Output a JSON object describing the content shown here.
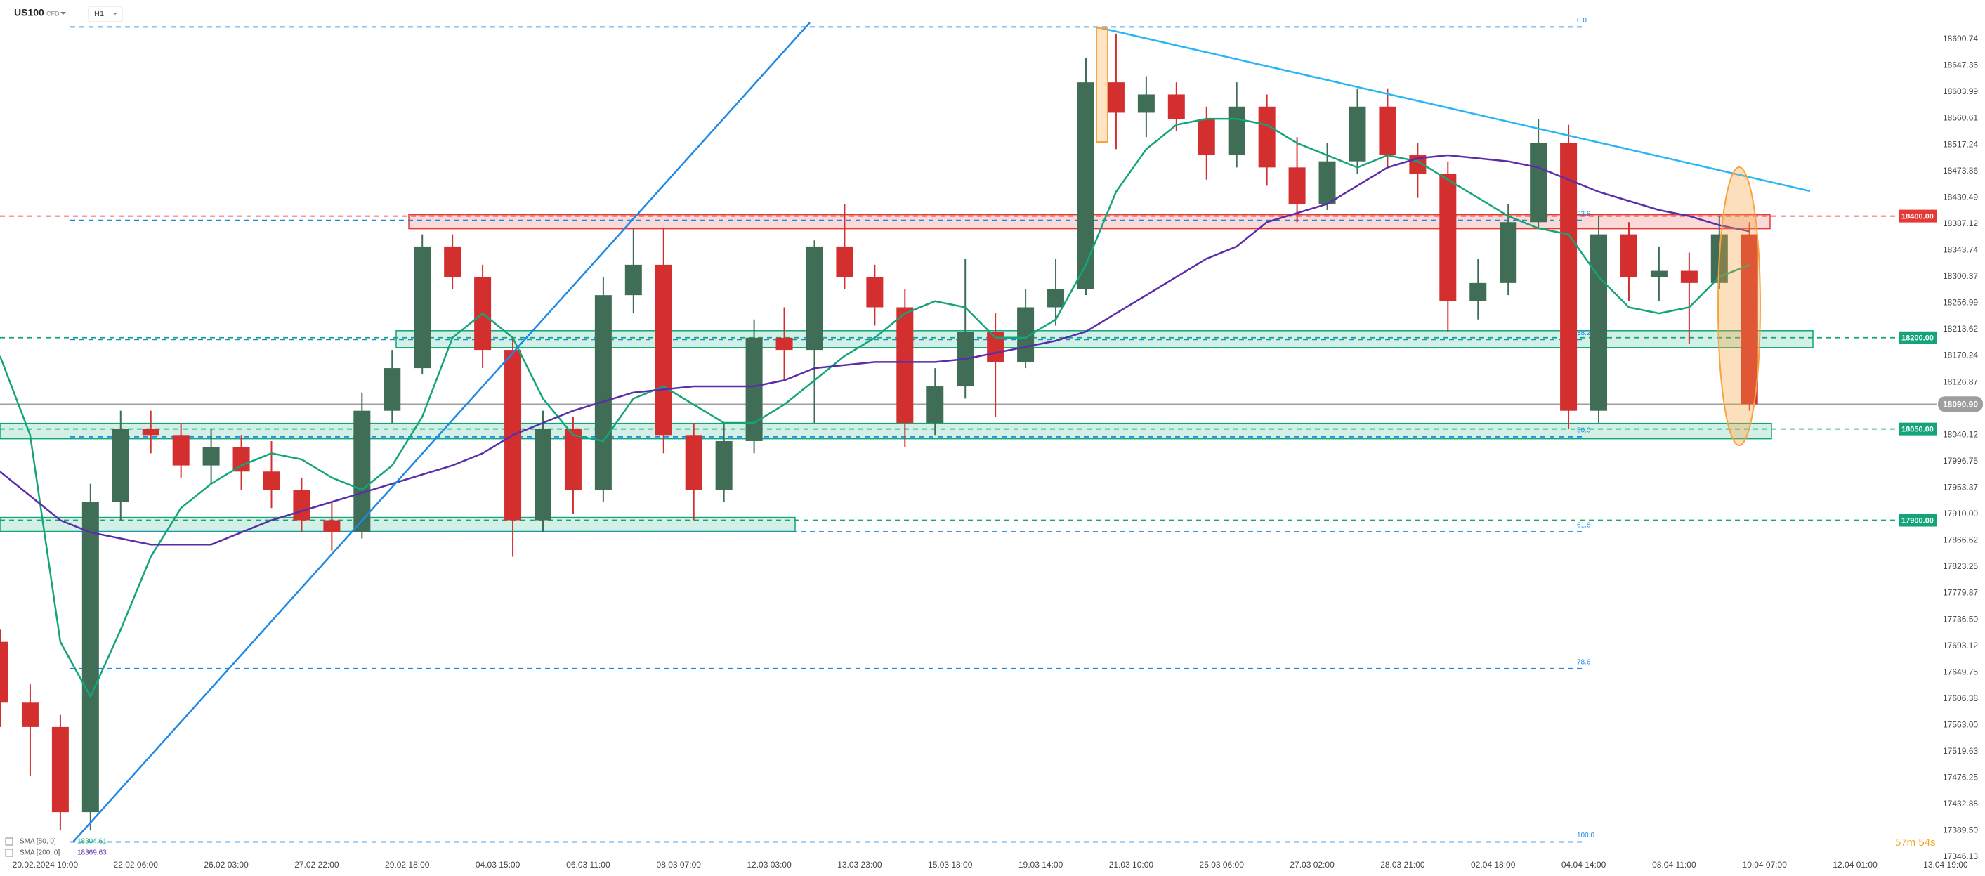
{
  "chart_data": {
    "type": "candlestick",
    "symbol": "US100",
    "instrument": "CFD",
    "interval": "H1",
    "timer": "57m 54s",
    "up_color": "#3f6d55",
    "down_color": "#d32f2f",
    "candles": {
      "open": [
        17700,
        17600,
        17560,
        17420,
        17930,
        18050,
        18040,
        17990,
        18020,
        17980,
        17950,
        17900,
        17880,
        18080,
        18150,
        18350,
        18300,
        18180,
        17900,
        18050,
        17950,
        18270,
        18320,
        18040,
        17950,
        18030,
        18200,
        18180,
        18350,
        18300,
        18250,
        18060,
        18120,
        18210,
        18160,
        18250,
        18280,
        18620,
        18570,
        18600,
        18560,
        18500,
        18580,
        18480,
        18420,
        18490,
        18580,
        18500,
        18470,
        18260,
        18290,
        18390,
        18520,
        18080,
        18370,
        18300,
        18310,
        18290,
        18370
      ],
      "high": [
        17720,
        17630,
        17580,
        17960,
        18080,
        18080,
        18060,
        18050,
        18040,
        18030,
        17970,
        17930,
        18110,
        18180,
        18370,
        18370,
        18320,
        18200,
        18080,
        18070,
        18300,
        18380,
        18380,
        18060,
        18060,
        18230,
        18250,
        18360,
        18420,
        18320,
        18280,
        18150,
        18330,
        18240,
        18280,
        18330,
        18660,
        18700,
        18630,
        18620,
        18580,
        18620,
        18600,
        18530,
        18520,
        18610,
        18610,
        18520,
        18490,
        18330,
        18420,
        18560,
        18550,
        18400,
        18390,
        18350,
        18340,
        18400,
        18390
      ],
      "low": [
        17560,
        17480,
        17390,
        17390,
        17900,
        18010,
        17970,
        17960,
        17950,
        17920,
        17880,
        17850,
        17870,
        18060,
        18140,
        18280,
        18150,
        17840,
        17880,
        17910,
        17930,
        18240,
        18010,
        17900,
        17930,
        18010,
        18130,
        18060,
        18280,
        18220,
        18020,
        18040,
        18100,
        18070,
        18150,
        18220,
        18270,
        18510,
        18530,
        18540,
        18460,
        18480,
        18450,
        18390,
        18410,
        18470,
        18480,
        18430,
        18210,
        18230,
        18270,
        18380,
        18050,
        18060,
        18260,
        18260,
        18190,
        18280,
        18080
      ],
      "close": [
        17600,
        17560,
        17420,
        17930,
        18050,
        18040,
        17990,
        18020,
        17980,
        17950,
        17900,
        17880,
        18080,
        18150,
        18350,
        18300,
        18180,
        17900,
        18050,
        17950,
        18270,
        18320,
        18040,
        17950,
        18030,
        18200,
        18180,
        18350,
        18300,
        18250,
        18060,
        18120,
        18210,
        18160,
        18250,
        18280,
        18620,
        18570,
        18600,
        18560,
        18500,
        18580,
        18480,
        18420,
        18490,
        18580,
        18500,
        18470,
        18260,
        18290,
        18390,
        18520,
        18080,
        18370,
        18300,
        18310,
        18290,
        18370,
        18090.9
      ]
    },
    "overlays": [
      {
        "name": "SMA [50, 0]",
        "last": 18304.61,
        "color": "#13a47a",
        "values": [
          18170,
          18040,
          17700,
          17610,
          17720,
          17840,
          17920,
          17960,
          17990,
          18010,
          18000,
          17970,
          17950,
          17990,
          18070,
          18200,
          18240,
          18200,
          18100,
          18040,
          18030,
          18100,
          18120,
          18090,
          18060,
          18060,
          18090,
          18130,
          18170,
          18200,
          18240,
          18260,
          18250,
          18200,
          18200,
          18230,
          18320,
          18440,
          18510,
          18550,
          18560,
          18560,
          18550,
          18520,
          18500,
          18480,
          18500,
          18490,
          18460,
          18430,
          18400,
          18380,
          18370,
          18300,
          18250,
          18240,
          18250,
          18300,
          18320
        ]
      },
      {
        "name": "SMA [200, 0]",
        "last": 18369.63,
        "color": "#5b2da8",
        "values": [
          17980,
          17940,
          17900,
          17880,
          17870,
          17860,
          17860,
          17860,
          17880,
          17900,
          17915,
          17930,
          17945,
          17960,
          17975,
          17990,
          18010,
          18040,
          18060,
          18080,
          18095,
          18110,
          18115,
          18120,
          18120,
          18120,
          18130,
          18150,
          18155,
          18160,
          18160,
          18160,
          18165,
          18175,
          18185,
          18195,
          18210,
          18240,
          18270,
          18300,
          18330,
          18350,
          18390,
          18405,
          18420,
          18450,
          18480,
          18495,
          18500,
          18495,
          18490,
          18480,
          18460,
          18440,
          18425,
          18410,
          18400,
          18385,
          18375
        ]
      }
    ],
    "levels": [
      {
        "value": 18400,
        "label": "18400.00",
        "color": "#e53935"
      },
      {
        "value": 18200,
        "label": "18200.00",
        "color": "#13a47a"
      },
      {
        "value": 18050,
        "label": "18050.00",
        "color": "#13a47a"
      },
      {
        "value": 17900,
        "label": "17900.00",
        "color": "#13a47a"
      }
    ],
    "fib_levels": [
      {
        "label": "0.0",
        "price": 18711
      },
      {
        "label": "23.6",
        "price": 18393
      },
      {
        "label": "38.2",
        "price": 18197
      },
      {
        "label": "50.0",
        "price": 18037
      },
      {
        "label": "61.8",
        "price": 17881
      },
      {
        "label": "78.6",
        "price": 17656
      },
      {
        "label": "100.0",
        "price": 17371
      }
    ],
    "fib_color": "#1e88e5",
    "last_price": {
      "value": 18090.9,
      "label": "18090.90"
    },
    "ylim": [
      17333.5,
      18755.3
    ],
    "yticks": [
      18690.74,
      18647.36,
      18603.99,
      18560.61,
      18517.24,
      18473.86,
      18430.49,
      18387.12,
      18343.74,
      18300.37,
      18256.99,
      18213.62,
      18170.24,
      18126.87,
      18040.12,
      17996.75,
      17953.37,
      {
        "value": 17910,
        "label": "17910.00"
      },
      17866.62,
      17823.25,
      17779.87,
      {
        "value": 17736.5,
        "label": "17736.50"
      },
      17693.12,
      17649.75,
      17606.38,
      {
        "value": 17563,
        "label": "17563.00"
      },
      17519.63,
      17476.25,
      17432.88,
      {
        "value": 17389.5,
        "label": "17389.50"
      },
      17346.13
    ],
    "xlim": [
      0,
      64.2
    ],
    "xticks": [
      {
        "value": 1.5,
        "label": "20.02.2024 10:00"
      },
      {
        "value": 4.5,
        "label": "22.02 06:00"
      },
      {
        "value": 7.5,
        "label": "26.02 03:00"
      },
      {
        "value": 10.5,
        "label": "27.02 22:00"
      },
      {
        "value": 13.5,
        "label": "29.02 18:00"
      },
      {
        "value": 16.5,
        "label": "04.03 15:00"
      },
      {
        "value": 19.5,
        "label": "06.03 11:00"
      },
      {
        "value": 22.5,
        "label": "08.03 07:00"
      },
      {
        "value": 25.5,
        "label": "12.03 03:00"
      },
      {
        "value": 28.5,
        "label": "13.03 23:00"
      },
      {
        "value": 31.5,
        "label": "15.03 18:00"
      },
      {
        "value": 34.5,
        "label": "19.03 14:00"
      },
      {
        "value": 37.5,
        "label": "21.03 10:00"
      },
      {
        "value": 40.5,
        "label": "25.03 06:00"
      },
      {
        "value": 43.5,
        "label": "27.03 02:00"
      },
      {
        "value": 46.5,
        "label": "28.03 21:00"
      },
      {
        "value": 49.5,
        "label": "02.04 18:00"
      },
      {
        "value": 52.5,
        "label": "04.04 14:00"
      },
      {
        "value": 55.5,
        "label": "08.04 11:00"
      },
      {
        "value": 58.5,
        "label": "10.04 07:00"
      },
      {
        "value": 61.5,
        "label": "12.04 01:00"
      },
      {
        "value": 64.5,
        "label": "13.04 19:00"
      }
    ]
  }
}
